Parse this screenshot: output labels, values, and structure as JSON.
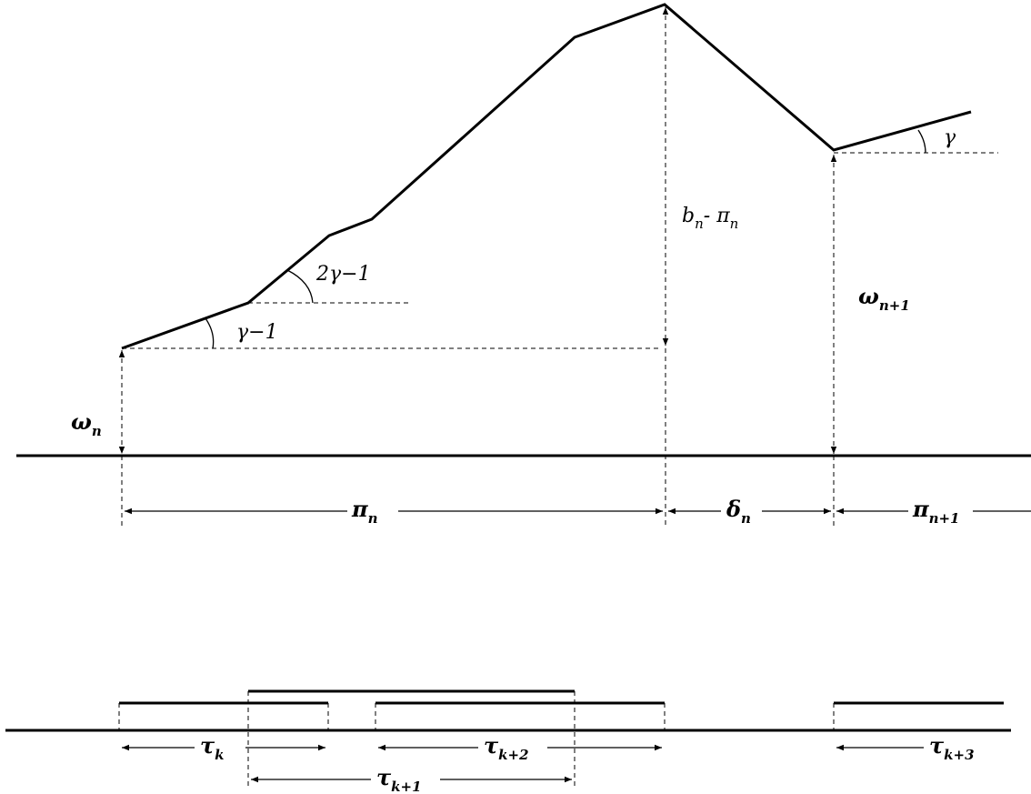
{
  "labels": {
    "slope_gamma_minus_1": "γ−1",
    "slope_2gamma_minus_1": "2γ−1",
    "slope_gamma": "γ",
    "omega_n": {
      "base": "ω",
      "sub": "n"
    },
    "omega_n1": {
      "base": "ω",
      "sub": "n+1"
    },
    "b_minus_pi": {
      "b": "b",
      "b_sub": "n",
      "mid": "- π",
      "pi_sub": "n"
    },
    "pi_n": {
      "base": "π",
      "sub": "n"
    },
    "delta_n": {
      "base": "δ",
      "sub": "n"
    },
    "pi_n1": {
      "base": "π",
      "sub": "n+1"
    },
    "tau_k": {
      "base": "τ",
      "sub": "k"
    },
    "tau_k1": {
      "base": "τ",
      "sub": "k+1"
    },
    "tau_k2": {
      "base": "τ",
      "sub": "k+2"
    },
    "tau_k3": {
      "base": "τ",
      "sub": "k+3"
    }
  }
}
